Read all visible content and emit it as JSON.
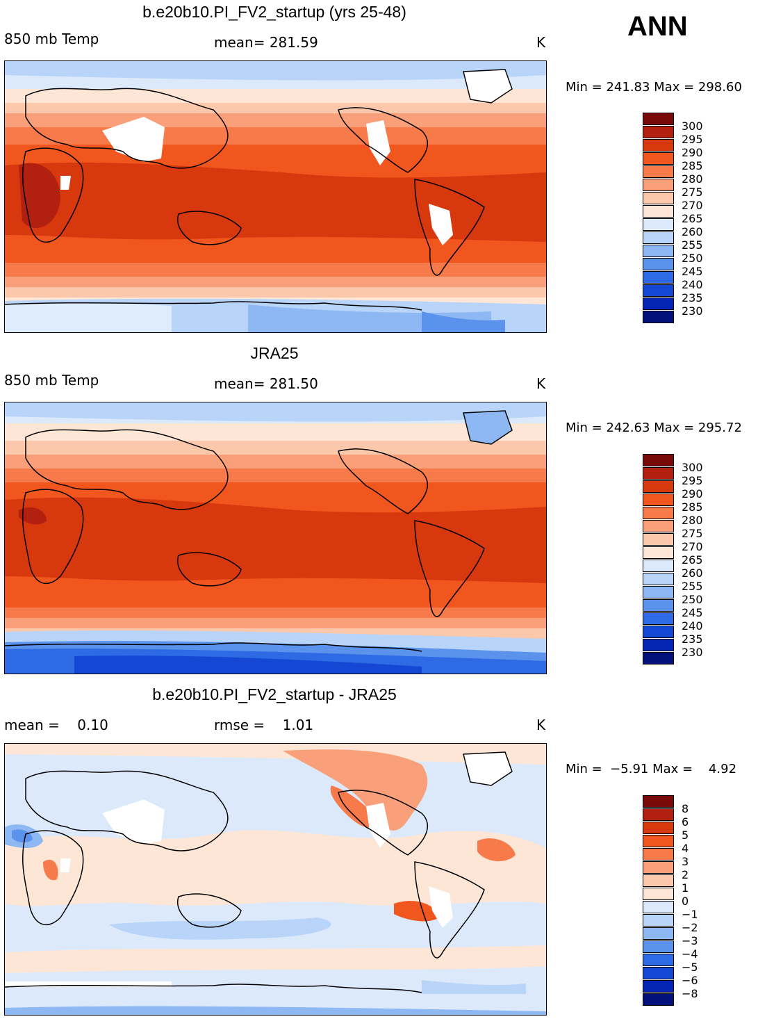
{
  "season": "ANN",
  "panels": [
    {
      "title": "b.e20b10.PI_FV2_startup (yrs 25-48)",
      "left_label": "850 mb Temp",
      "center_label": "mean= 281.59",
      "units": "K",
      "min_label": "Min = 241.83 Max = 298.60",
      "colorbar": [
        "300",
        "295",
        "290",
        "285",
        "280",
        "275",
        "270",
        "265",
        "260",
        "255",
        "250",
        "245",
        "240",
        "235",
        "230"
      ]
    },
    {
      "title": "JRA25",
      "left_label": "850 mb Temp",
      "center_label": "mean= 281.50",
      "units": "K",
      "min_label": "Min = 242.63 Max = 295.72",
      "colorbar": [
        "300",
        "295",
        "290",
        "285",
        "280",
        "275",
        "270",
        "265",
        "260",
        "255",
        "250",
        "245",
        "240",
        "235",
        "230"
      ]
    },
    {
      "title": "b.e20b10.PI_FV2_startup - JRA25",
      "left_label": "mean =    0.10",
      "center_label": "rmse =    1.01",
      "units": "K",
      "min_label": "Min =  −5.91 Max =    4.92",
      "colorbar": [
        "8",
        "6",
        "5",
        "4",
        "3",
        "2",
        "1",
        "0",
        "−1",
        "−2",
        "−3",
        "−4",
        "−5",
        "−6",
        "−8"
      ]
    }
  ],
  "colors": {
    "c0": "#7a0a0a",
    "c1": "#b22010",
    "c2": "#d8380e",
    "c3": "#f0561e",
    "c4": "#f67a4a",
    "c5": "#f9a07a",
    "c6": "#fbc8ac",
    "c7": "#fde6d6",
    "c8": "#dbe9fb",
    "c9": "#b8d4f8",
    "c10": "#8db8f3",
    "c11": "#5a92ec",
    "c12": "#2d6ae4",
    "c13": "#1448d4",
    "c14": "#0526b4",
    "c15": "#03117a"
  }
}
